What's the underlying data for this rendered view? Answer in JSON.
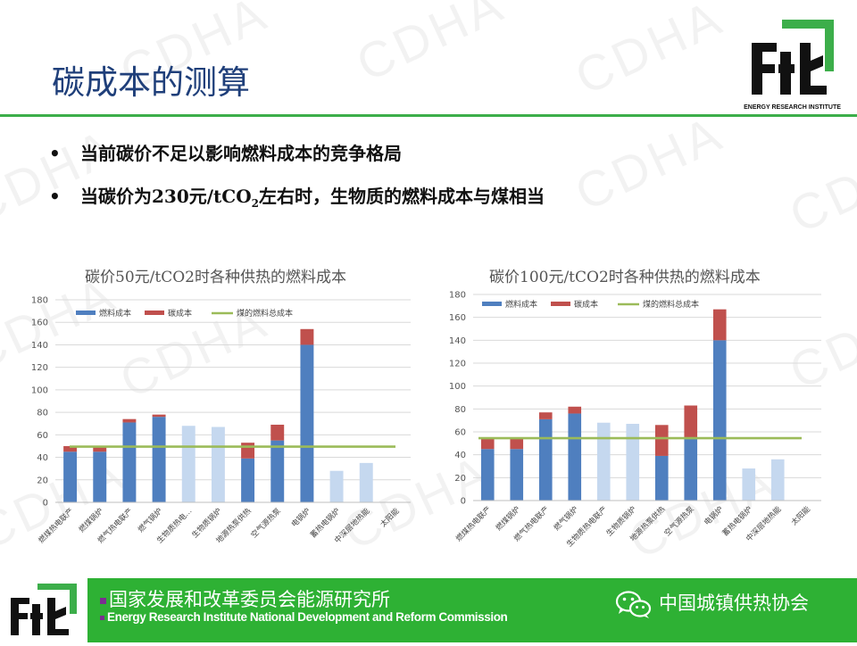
{
  "watermark": "CDHA",
  "slide": {
    "title": "碳成本的测算",
    "logo_caption": "ENERGY RESEARCH INSTITUTE",
    "bullets": {
      "b1": "当前碳价不足以影响燃料成本的竞争格局",
      "b2_pre": "当碳价为230元/tCO",
      "b2_sub": "2",
      "b2_post": "左右时，生物质的燃料成本与煤相当"
    }
  },
  "footer": {
    "org_cn": "国家发展和改革委员会能源研究所",
    "org_en": "Energy Research Institute National Development and Reform Commission",
    "assoc": "中国城镇供热协会"
  },
  "colors": {
    "fuel": "#4f7fbf",
    "fuel_light": "#c5d8ef",
    "carbon": "#c0504d",
    "coal_line": "#9bbb59",
    "brand_green": "#2eb134",
    "title_blue": "#1f3f7a"
  },
  "chart_data": [
    {
      "type": "bar",
      "stacked": true,
      "title": "碳价50元/tCO2时各种供热的燃料成本",
      "categories": [
        "燃煤热电联产",
        "燃煤锅炉",
        "燃气热电联产",
        "燃气锅炉",
        "生物质热电…",
        "生物质锅炉",
        "地源热泵供热",
        "空气源热泵",
        "电锅炉",
        "蓄热电锅炉",
        "中深层地热能",
        "太阳能"
      ],
      "series": [
        {
          "name": "燃料成本",
          "values": [
            45,
            45,
            71,
            76,
            68,
            67,
            39,
            55,
            140,
            28,
            35,
            0
          ]
        },
        {
          "name": "碳成本",
          "values": [
            5,
            4,
            3,
            2,
            0,
            0,
            14,
            14,
            14,
            0,
            0,
            0
          ]
        },
        {
          "name": "煤的燃料总成本",
          "type": "line",
          "value": 49.5
        }
      ],
      "light_bars": [
        "生物质热电…",
        "生物质锅炉",
        "蓄热电锅炉",
        "中深层地热能"
      ],
      "ylim": [
        0,
        180
      ],
      "yticks": [
        0,
        20,
        40,
        60,
        80,
        100,
        120,
        140,
        160,
        180
      ],
      "legend": "top"
    },
    {
      "type": "bar",
      "stacked": true,
      "title": "碳价100元/tCO2时各种供热的燃料成本",
      "categories": [
        "燃煤热电联产",
        "燃煤锅炉",
        "燃气热电联产",
        "燃气锅炉",
        "生物质热电联产",
        "生物质锅炉",
        "地源热泵供热",
        "空气源热泵",
        "电锅炉",
        "蓄热电锅炉",
        "中深层地热能",
        "太阳能"
      ],
      "series": [
        {
          "name": "燃料成本",
          "values": [
            45,
            45,
            71,
            76,
            68,
            67,
            39,
            55,
            140,
            28,
            36,
            0
          ]
        },
        {
          "name": "碳成本",
          "values": [
            10,
            9,
            6,
            6,
            0,
            0,
            27,
            28,
            27,
            0,
            0,
            0
          ]
        },
        {
          "name": "煤的燃料总成本",
          "type": "line",
          "value": 54.5
        }
      ],
      "light_bars": [
        "生物质热电联产",
        "生物质锅炉",
        "蓄热电锅炉",
        "中深层地热能"
      ],
      "ylim": [
        0,
        180
      ],
      "yticks": [
        0,
        20,
        40,
        60,
        80,
        100,
        120,
        140,
        160,
        180
      ],
      "legend": "top"
    }
  ]
}
